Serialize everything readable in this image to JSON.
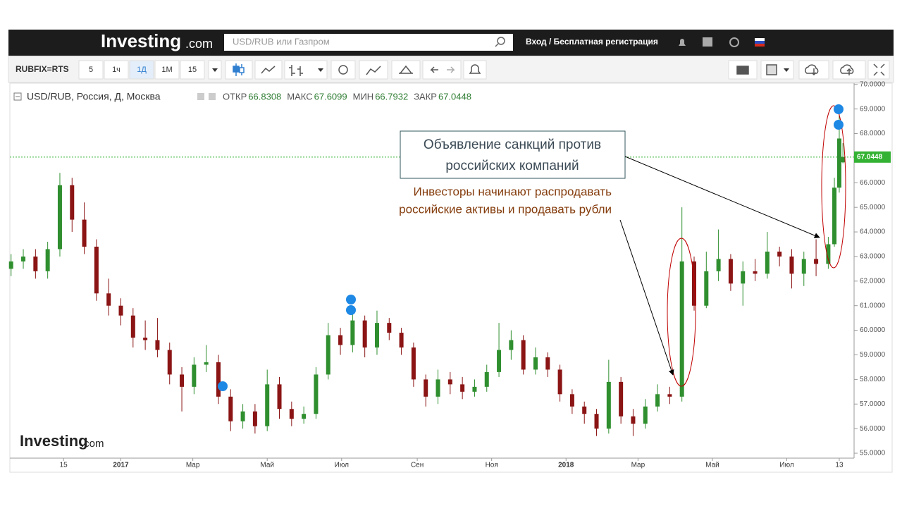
{
  "page": {
    "logo": "Investing",
    "logo_suffix": ".com",
    "search_placeholder": "USD/RUB или Газпром",
    "login": "Вход / Бесплатная регистрация",
    "symbol": "RUBFIX=RTS",
    "intervals": [
      "5",
      "1ч",
      "1Д",
      "1М",
      "15"
    ]
  },
  "chart_data": {
    "type": "candlestick",
    "title": "USD/RUB, Россия, Д, Москва",
    "ohlc_labels": [
      "ОТКР",
      "МАКС",
      "МИН",
      "ЗАКР"
    ],
    "ohlc_values": [
      66.8308,
      67.6099,
      66.7932,
      67.0448
    ],
    "last_price": 67.0448,
    "up_color": "#2f8f2f",
    "down_color": "#8b1414",
    "last_price_color": "#33b233",
    "x": [
      -90,
      -80,
      -70,
      -60,
      -50,
      -40,
      -30,
      -20,
      -10,
      0,
      10,
      20,
      30,
      40,
      50,
      60,
      70,
      80,
      90,
      100,
      110,
      120,
      130,
      140,
      150,
      160,
      170,
      180,
      190,
      200,
      210,
      220,
      230,
      240,
      250,
      260,
      270,
      280,
      290,
      300,
      310,
      320,
      330,
      340,
      350,
      360,
      370,
      380,
      390,
      400,
      410,
      420,
      430,
      440,
      450,
      460,
      470,
      480,
      490,
      500,
      510,
      520,
      530,
      540,
      550,
      560,
      570,
      580,
      585,
      589,
      592
    ],
    "open": [
      62.5,
      62.8,
      63.0,
      62.4,
      63.3,
      65.9,
      64.5,
      63.4,
      61.5,
      61.0,
      60.6,
      59.7,
      59.6,
      59.2,
      58.2,
      57.7,
      58.6,
      58.7,
      57.3,
      56.3,
      56.7,
      56.1,
      57.8,
      56.8,
      56.4,
      56.6,
      58.2,
      59.8,
      59.4,
      60.4,
      59.3,
      60.3,
      59.9,
      59.3,
      58.0,
      57.3,
      58.0,
      57.8,
      57.5,
      57.7,
      58.3,
      59.2,
      59.6,
      58.4,
      58.9,
      58.4,
      57.4,
      56.9,
      56.6,
      56.0,
      57.9,
      56.5,
      56.2,
      56.9,
      57.4,
      57.3,
      62.8,
      61.0,
      62.4,
      62.9,
      61.9,
      62.4,
      62.3,
      63.2,
      63.0,
      62.3,
      62.9,
      62.7,
      63.5,
      65.8,
      66.8308
    ],
    "high": [
      63.1,
      63.3,
      63.3,
      63.6,
      66.4,
      66.2,
      65.2,
      63.7,
      62.1,
      61.3,
      60.9,
      60.4,
      60.5,
      59.5,
      58.5,
      58.9,
      59.4,
      59.0,
      57.6,
      57.0,
      57.0,
      58.4,
      58.1,
      57.1,
      56.9,
      58.5,
      60.3,
      60.1,
      60.7,
      60.6,
      60.8,
      60.5,
      60.1,
      59.5,
      58.2,
      58.4,
      58.3,
      58.1,
      58.0,
      58.6,
      60.3,
      60.0,
      59.8,
      59.3,
      59.1,
      58.6,
      57.6,
      57.1,
      56.8,
      58.8,
      58.1,
      56.8,
      57.2,
      57.8,
      57.7,
      65.0,
      63.0,
      63.2,
      64.1,
      63.1,
      62.8,
      62.9,
      64.0,
      63.4,
      63.3,
      63.2,
      63.7,
      63.8,
      66.2,
      68.9,
      67.6099
    ],
    "low": [
      62.2,
      62.5,
      62.1,
      62.1,
      63.0,
      64.0,
      63.1,
      61.2,
      60.6,
      60.2,
      59.3,
      59.2,
      58.9,
      57.8,
      56.7,
      57.4,
      58.3,
      57.0,
      55.9,
      56.0,
      55.8,
      55.9,
      56.4,
      56.1,
      56.2,
      56.4,
      58.0,
      59.0,
      59.1,
      58.9,
      59.0,
      59.6,
      59.0,
      57.7,
      56.9,
      57.0,
      57.4,
      57.2,
      57.3,
      57.5,
      58.1,
      58.8,
      58.2,
      58.2,
      58.1,
      57.1,
      56.6,
      56.2,
      55.7,
      55.8,
      56.2,
      55.7,
      56.0,
      56.7,
      57.0,
      57.1,
      60.8,
      60.9,
      62.0,
      61.6,
      61.0,
      62.0,
      62.1,
      62.6,
      61.7,
      61.8,
      62.2,
      62.5,
      63.4,
      65.6,
      66.7932
    ],
    "close": [
      62.8,
      63.0,
      62.4,
      63.3,
      65.9,
      64.5,
      63.4,
      61.5,
      61.0,
      60.6,
      59.7,
      59.6,
      59.2,
      58.2,
      57.7,
      58.6,
      58.7,
      57.3,
      56.3,
      56.7,
      56.1,
      57.8,
      56.8,
      56.4,
      56.6,
      58.2,
      59.8,
      59.4,
      60.4,
      59.3,
      60.3,
      59.9,
      59.3,
      58.0,
      57.3,
      58.0,
      57.8,
      57.5,
      57.7,
      58.3,
      59.2,
      59.6,
      58.4,
      58.9,
      58.4,
      57.4,
      56.9,
      56.6,
      56.0,
      57.9,
      56.5,
      56.2,
      56.9,
      57.4,
      57.3,
      62.8,
      61.0,
      62.4,
      62.9,
      61.9,
      62.4,
      62.3,
      63.2,
      63.0,
      62.3,
      62.9,
      62.7,
      63.5,
      65.8,
      67.8,
      67.0448
    ],
    "xlim": [
      -91,
      600
    ],
    "xticks": [
      {
        "value": -47,
        "label": "15"
      },
      {
        "value": 0,
        "label": "2017"
      },
      {
        "value": 59,
        "label": "Мар"
      },
      {
        "value": 120,
        "label": "Май"
      },
      {
        "value": 181,
        "label": "Июл"
      },
      {
        "value": 243,
        "label": "Сен"
      },
      {
        "value": 304,
        "label": "Ноя"
      },
      {
        "value": 365,
        "label": "2018"
      },
      {
        "value": 424,
        "label": "Мар"
      },
      {
        "value": 485,
        "label": "Май"
      },
      {
        "value": 546,
        "label": "Июл"
      },
      {
        "value": 589,
        "label": "13"
      }
    ],
    "ylim": [
      54.8,
      70.05
    ],
    "yticks": [
      {
        "value": 55,
        "label": "55.0000"
      },
      {
        "value": 56,
        "label": "56.0000"
      },
      {
        "value": 57,
        "label": "57.0000"
      },
      {
        "value": 58,
        "label": "58.0000"
      },
      {
        "value": 59,
        "label": "59.0000"
      },
      {
        "value": 60,
        "label": "60.0000"
      },
      {
        "value": 61,
        "label": "61.0000"
      },
      {
        "value": 62,
        "label": "62.0000"
      },
      {
        "value": 63,
        "label": "63.0000"
      },
      {
        "value": 64,
        "label": "64.0000"
      },
      {
        "value": 65,
        "label": "65.0000"
      },
      {
        "value": 66,
        "label": "66.0000"
      },
      {
        "value": 67,
        "label": "67.0000"
      },
      {
        "value": 68,
        "label": "68.0000"
      },
      {
        "value": 69,
        "label": "69.0000"
      },
      {
        "value": 70,
        "label": "70.0000"
      }
    ],
    "annotations": [
      {
        "lines": [
          "Объявление  санкций против",
          "российских компаний"
        ]
      },
      {
        "lines": [
          "Инвесторы начинают распродавать",
          "российские активы и продавать рубли"
        ]
      }
    ],
    "watermark": "Investing",
    "watermark_suffix": ".com"
  }
}
